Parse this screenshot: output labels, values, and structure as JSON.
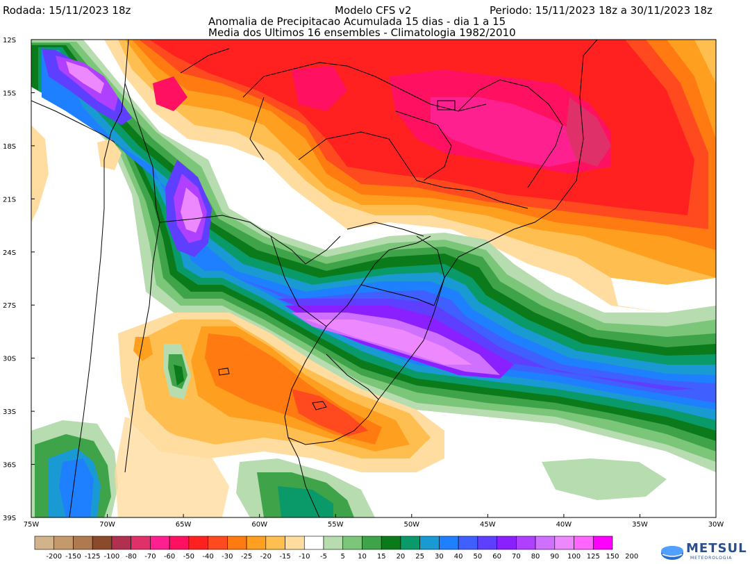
{
  "header": {
    "rodada": "Rodada: 15/11/2023 18z",
    "modelo": "Modelo CFS v2",
    "periodo": "Periodo: 15/11/2023 18z a 30/11/2023 18z",
    "subtitle1": "Anomalia de Precipitacao Acumulada 15 dias - dia 1 a 15",
    "subtitle2": "Media dos Ultimos 16 ensembles - Climatologia 1982/2010"
  },
  "map": {
    "lat_labels": [
      "12S",
      "15S",
      "18S",
      "21S",
      "24S",
      "27S",
      "30S",
      "33S",
      "36S",
      "39S"
    ],
    "lon_labels": [
      "75W",
      "70W",
      "65W",
      "60W",
      "55W",
      "50W",
      "45W",
      "40W",
      "35W",
      "30W"
    ],
    "lon_range": [
      -75,
      -30
    ],
    "lat_range": [
      -12,
      -39
    ]
  },
  "colorbar": {
    "labels": [
      "-200",
      "-150",
      "-125",
      "-100",
      "-80",
      "-70",
      "-60",
      "-50",
      "-40",
      "-30",
      "-25",
      "-20",
      "-15",
      "-10",
      "-5",
      "5",
      "10",
      "15",
      "20",
      "25",
      "30",
      "40",
      "50",
      "60",
      "70",
      "80",
      "90",
      "100",
      "125",
      "150",
      "200"
    ],
    "colors": [
      "#d2b48c",
      "#c49a6c",
      "#b07a50",
      "#8b4a2b",
      "#b03050",
      "#e0306a",
      "#ff2090",
      "#ff1060",
      "#ff2020",
      "#ff4a20",
      "#ff7a10",
      "#ff9f20",
      "#ffbf50",
      "#ffdca0",
      "#ffffff",
      "#b6dcb0",
      "#7cc67a",
      "#3fa34a",
      "#0a7a1a",
      "#0a9a6a",
      "#1a9ad2",
      "#1e7fff",
      "#3f5fff",
      "#5f3fff",
      "#8a20ff",
      "#b040ff",
      "#d070ff",
      "#ee88ff",
      "#ff66ff",
      "#ff00ff"
    ]
  },
  "logo": {
    "name": "METSUL",
    "sub": "METEOROLOGIA"
  }
}
